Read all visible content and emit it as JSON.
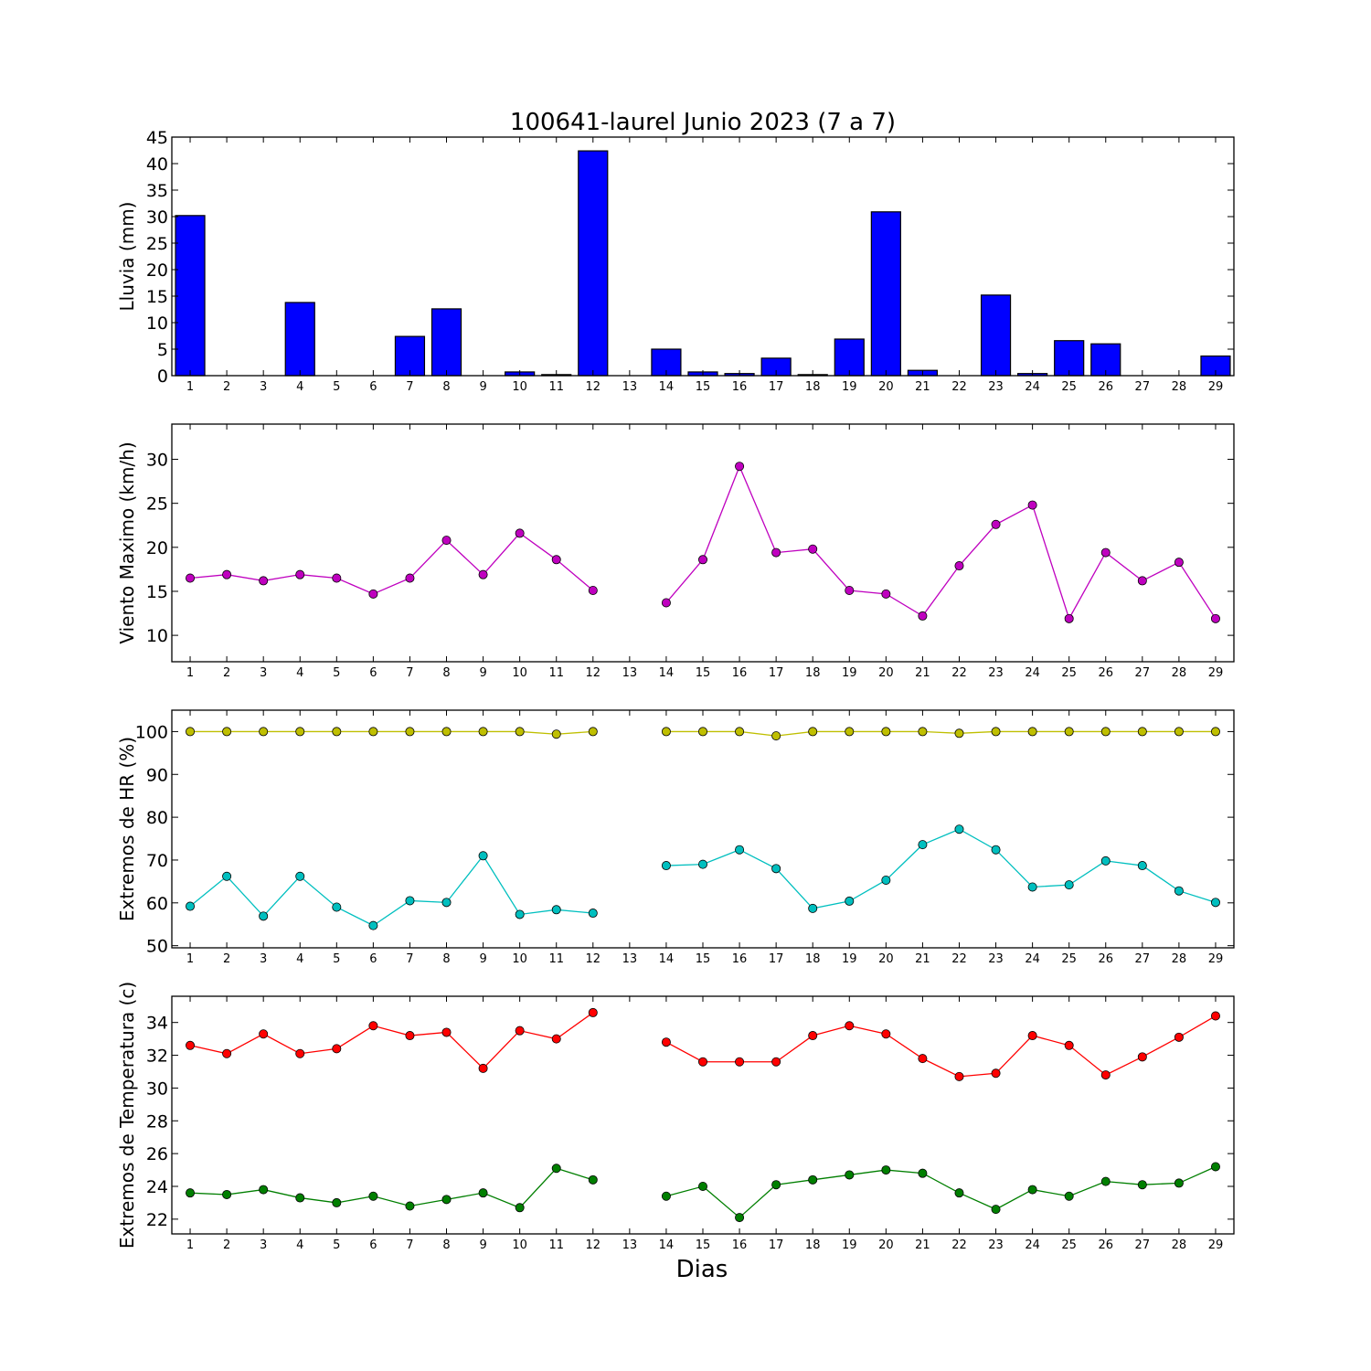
{
  "figure": {
    "title": "100641-laurel Junio 2023  (7 a 7)",
    "xlabel": "Dias"
  },
  "chart_data": [
    {
      "type": "bar",
      "ylabel": "Lluvia (mm)",
      "ylim": [
        0,
        45
      ],
      "yticks": [
        0,
        5,
        10,
        15,
        20,
        25,
        30,
        35,
        40,
        45
      ],
      "categories": [
        1,
        2,
        3,
        4,
        5,
        6,
        7,
        8,
        9,
        10,
        11,
        12,
        13,
        14,
        15,
        16,
        17,
        18,
        19,
        20,
        21,
        22,
        23,
        24,
        25,
        26,
        27,
        28,
        29
      ],
      "color": "#0000ff",
      "values": [
        30.2,
        0,
        0,
        13.8,
        0,
        0,
        7.4,
        12.6,
        0,
        0.7,
        0.2,
        42.4,
        null,
        5.0,
        0.7,
        0.4,
        3.3,
        0.2,
        6.9,
        30.9,
        1.0,
        0,
        15.2,
        0.4,
        6.6,
        6.0,
        0,
        0,
        3.7
      ]
    },
    {
      "type": "line",
      "ylabel": "Viento Maximo (km/h)",
      "ylim": [
        7,
        34
      ],
      "yticks": [
        10,
        15,
        20,
        25,
        30
      ],
      "categories": [
        1,
        2,
        3,
        4,
        5,
        6,
        7,
        8,
        9,
        10,
        11,
        12,
        13,
        14,
        15,
        16,
        17,
        18,
        19,
        20,
        21,
        22,
        23,
        24,
        25,
        26,
        27,
        28,
        29
      ],
      "series": [
        {
          "color": "#bf00bf",
          "values": [
            16.5,
            16.9,
            16.2,
            16.9,
            16.5,
            14.7,
            16.5,
            20.8,
            16.9,
            21.6,
            18.6,
            15.1,
            null,
            13.7,
            18.6,
            29.2,
            19.4,
            19.8,
            15.1,
            14.7,
            12.2,
            17.9,
            22.6,
            24.8,
            11.9,
            19.4,
            16.2,
            18.3,
            11.9
          ]
        }
      ]
    },
    {
      "type": "line",
      "ylabel": "Extremos de HR (%)",
      "ylim": [
        49.5,
        105
      ],
      "yticks": [
        50,
        60,
        70,
        80,
        90,
        100
      ],
      "categories": [
        1,
        2,
        3,
        4,
        5,
        6,
        7,
        8,
        9,
        10,
        11,
        12,
        13,
        14,
        15,
        16,
        17,
        18,
        19,
        20,
        21,
        22,
        23,
        24,
        25,
        26,
        27,
        28,
        29
      ],
      "series": [
        {
          "color": "#bfbf00",
          "values": [
            100,
            100,
            100,
            100,
            100,
            100,
            100,
            100,
            100,
            100,
            99.4,
            100,
            null,
            100,
            100,
            100,
            99.0,
            100,
            100,
            100,
            100,
            99.6,
            100,
            100,
            100,
            100,
            100,
            100,
            100
          ]
        },
        {
          "color": "#00bfbf",
          "values": [
            59.2,
            66.2,
            56.9,
            66.2,
            59.0,
            54.7,
            60.5,
            60.1,
            71.0,
            57.3,
            58.4,
            57.6,
            null,
            68.7,
            69.0,
            72.4,
            68.0,
            58.7,
            60.4,
            65.3,
            73.6,
            77.2,
            72.4,
            63.7,
            64.2,
            69.8,
            68.7,
            62.8,
            60.1
          ]
        }
      ]
    },
    {
      "type": "line",
      "ylabel": "Extremos de Temperatura (c)",
      "ylim": [
        21.1,
        35.6
      ],
      "yticks": [
        22,
        24,
        26,
        28,
        30,
        32,
        34
      ],
      "categories": [
        1,
        2,
        3,
        4,
        5,
        6,
        7,
        8,
        9,
        10,
        11,
        12,
        13,
        14,
        15,
        16,
        17,
        18,
        19,
        20,
        21,
        22,
        23,
        24,
        25,
        26,
        27,
        28,
        29
      ],
      "series": [
        {
          "color": "#ff0000",
          "values": [
            32.6,
            32.1,
            33.3,
            32.1,
            32.4,
            33.8,
            33.2,
            33.4,
            31.2,
            33.5,
            33.0,
            34.6,
            null,
            32.8,
            31.6,
            31.6,
            31.6,
            33.2,
            33.8,
            33.3,
            31.8,
            30.7,
            30.9,
            33.2,
            32.6,
            30.8,
            31.9,
            33.1,
            34.4
          ]
        },
        {
          "color": "#007f00",
          "values": [
            23.6,
            23.5,
            23.8,
            23.3,
            23.0,
            23.4,
            22.8,
            23.2,
            23.6,
            22.7,
            25.1,
            24.4,
            null,
            23.4,
            24.0,
            22.1,
            24.1,
            24.4,
            24.7,
            25.0,
            24.8,
            23.6,
            22.6,
            23.8,
            23.4,
            24.3,
            24.1,
            24.2,
            25.2
          ]
        }
      ]
    }
  ]
}
